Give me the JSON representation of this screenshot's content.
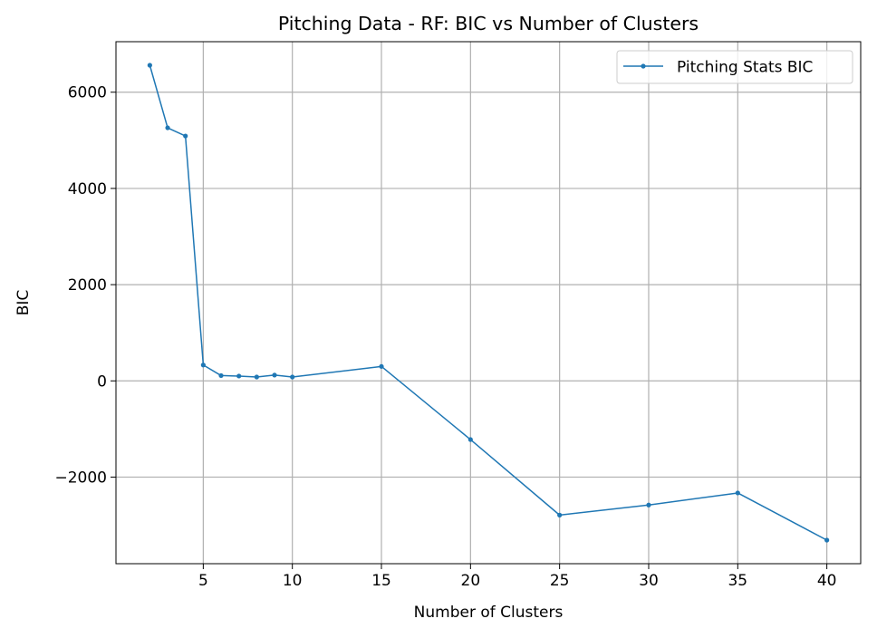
{
  "chart_data": {
    "type": "line",
    "title": "Pitching Data - RF: BIC vs Number of Clusters",
    "xlabel": "Number of Clusters",
    "ylabel": "BIC",
    "xlim": [
      0.1,
      41.9
    ],
    "ylim": [
      -3800,
      7050
    ],
    "xticks": [
      5,
      10,
      15,
      20,
      25,
      30,
      35,
      40
    ],
    "yticks": [
      -2000,
      0,
      2000,
      4000,
      6000
    ],
    "grid": true,
    "legend_position": "top-right",
    "series": [
      {
        "name": "Pitching Stats BIC",
        "color": "#1f77b4",
        "marker": "circle",
        "x": [
          2,
          3,
          4,
          5,
          6,
          7,
          8,
          9,
          10,
          15,
          20,
          25,
          30,
          35,
          40
        ],
        "y": [
          6560,
          5260,
          5090,
          330,
          110,
          100,
          80,
          120,
          80,
          300,
          -1220,
          -2790,
          -2580,
          -2330,
          -3310
        ]
      }
    ]
  }
}
